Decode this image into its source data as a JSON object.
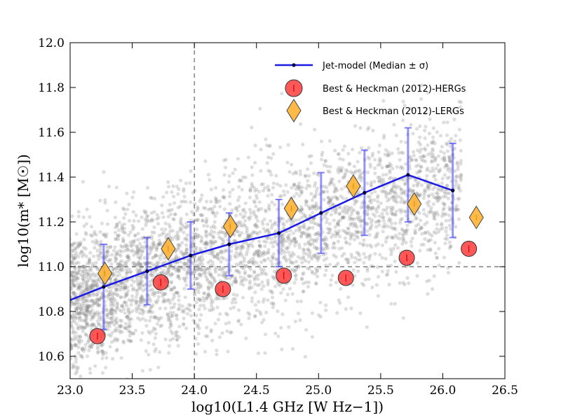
{
  "chart_data": {
    "type": "scatter",
    "xlim": [
      23.0,
      26.5
    ],
    "ylim": [
      10.5,
      12.0
    ],
    "x_ticks": [
      "23.0",
      "23.5",
      "24.0",
      "24.5",
      "25.0",
      "25.5",
      "26.0",
      "26.5"
    ],
    "y_ticks": [
      "10.6",
      "10.8",
      "11.0",
      "11.2",
      "11.4",
      "11.6",
      "11.8",
      "12.0"
    ],
    "xlabel": "log10(L1.4 GHz [W Hz−1])",
    "ylabel": "log10(m* [M☉])",
    "reference_lines": {
      "x": 24.0,
      "y": 11.0
    },
    "background_points_note": "grey scatter of simulated galaxies (dense cloud)",
    "series": [
      {
        "name": "Jet-model (Median ± σ)",
        "color": "#1a1ae6",
        "x": [
          22.95,
          23.27,
          23.62,
          23.97,
          24.28,
          24.68,
          25.02,
          25.37,
          25.72,
          26.08
        ],
        "y": [
          10.84,
          10.91,
          10.98,
          11.05,
          11.1,
          11.15,
          11.24,
          11.33,
          11.41,
          11.34
        ],
        "err": [
          0.0,
          0.19,
          0.15,
          0.15,
          0.14,
          0.15,
          0.18,
          0.19,
          0.21,
          0.21
        ]
      },
      {
        "name": "Best & Heckman (2012)-HERGs",
        "color": "#ff3b3b",
        "x": [
          23.22,
          23.73,
          24.23,
          24.72,
          25.22,
          25.71,
          26.21
        ],
        "y": [
          10.69,
          10.93,
          10.9,
          10.96,
          10.95,
          11.04,
          11.08
        ]
      },
      {
        "name": "Best & Heckman (2012)-LERGs",
        "color": "#ffb233",
        "x": [
          23.28,
          23.79,
          24.29,
          24.78,
          25.28,
          25.77,
          26.27
        ],
        "y": [
          10.97,
          11.08,
          11.18,
          11.26,
          11.36,
          11.28,
          11.22
        ]
      }
    ],
    "legend": {
      "position": "top-right",
      "entries": [
        "Jet-model (Median ± σ)",
        "Best & Heckman (2012)-HERGs",
        "Best & Heckman (2012)-LERGs"
      ]
    }
  }
}
